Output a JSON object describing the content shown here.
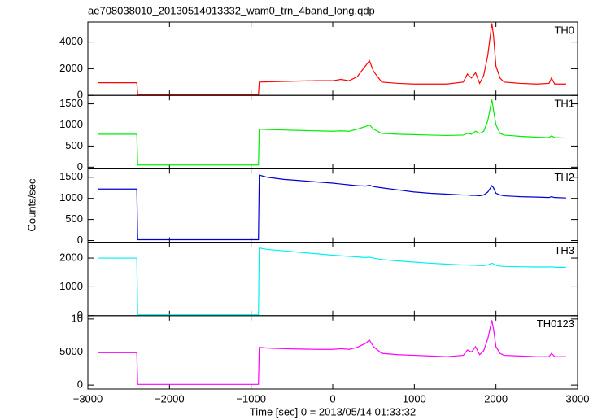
{
  "chart_data": {
    "type": "line",
    "title": "ae708038010_20130514013332_wam0_trn_4band_long.qdp",
    "xlabel": "Time [sec] 0 = 2013/05/14 01:33:32",
    "ylabel": "Counts/sec",
    "xlim": [
      -3000,
      3000
    ],
    "xticks": [
      {
        "value": -3000,
        "label": "−3000"
      },
      {
        "value": -2000,
        "label": "−2000"
      },
      {
        "value": -1000,
        "label": "−1000"
      },
      0,
      1000,
      2000,
      3000
    ],
    "x": [
      -2880,
      -2700,
      -2500,
      -2400,
      -2390,
      -2200,
      -2000,
      -1800,
      -1600,
      -1400,
      -1200,
      -1000,
      -910,
      -900,
      -800,
      -600,
      -400,
      -200,
      0,
      100,
      200,
      300,
      400,
      450,
      500,
      600,
      800,
      1000,
      1200,
      1400,
      1600,
      1650,
      1700,
      1750,
      1800,
      1850,
      1900,
      1950,
      1970,
      2000,
      2050,
      2100,
      2300,
      2500,
      2650,
      2680,
      2720,
      2860
    ],
    "series": [
      {
        "name": "TH0",
        "color": "#ff0000",
        "ylim": [
          0,
          5500
        ],
        "yticks": [
          0,
          2000,
          4000
        ],
        "values": [
          950,
          950,
          950,
          950,
          60,
          60,
          60,
          60,
          60,
          60,
          60,
          60,
          60,
          1000,
          1020,
          1050,
          1080,
          1100,
          1100,
          1200,
          1100,
          1400,
          2200,
          2600,
          1800,
          1000,
          900,
          850,
          850,
          850,
          1000,
          1600,
          1300,
          1700,
          900,
          1500,
          3000,
          5400,
          4500,
          2200,
          1300,
          1000,
          900,
          850,
          900,
          1300,
          850,
          850
        ]
      },
      {
        "name": "TH1",
        "color": "#00ee00",
        "ylim": [
          -40,
          1700
        ],
        "yticks": [
          0,
          500,
          1000,
          1500
        ],
        "values": [
          780,
          780,
          780,
          780,
          50,
          50,
          50,
          50,
          50,
          50,
          50,
          50,
          50,
          900,
          890,
          880,
          870,
          860,
          850,
          860,
          850,
          900,
          960,
          1000,
          900,
          800,
          780,
          770,
          760,
          750,
          760,
          800,
          780,
          850,
          800,
          850,
          1100,
          1600,
          1350,
          1000,
          800,
          760,
          730,
          710,
          700,
          740,
          700,
          690
        ]
      },
      {
        "name": "TH2",
        "color": "#0000d0",
        "ylim": [
          -40,
          1700
        ],
        "yticks": [
          0,
          500,
          1000,
          1500
        ],
        "values": [
          1220,
          1220,
          1220,
          1220,
          20,
          20,
          20,
          20,
          20,
          20,
          20,
          20,
          20,
          1550,
          1500,
          1450,
          1420,
          1390,
          1360,
          1340,
          1320,
          1300,
          1290,
          1310,
          1280,
          1250,
          1200,
          1150,
          1120,
          1100,
          1080,
          1080,
          1070,
          1070,
          1060,
          1080,
          1150,
          1300,
          1250,
          1120,
          1080,
          1060,
          1040,
          1030,
          1020,
          1040,
          1020,
          1010
        ]
      },
      {
        "name": "TH3",
        "color": "#00f0f0",
        "ylim": [
          0,
          2550
        ],
        "yticks": [
          0,
          1000,
          2000
        ],
        "values": [
          2000,
          2000,
          2000,
          2000,
          30,
          30,
          30,
          30,
          30,
          30,
          30,
          30,
          30,
          2350,
          2300,
          2250,
          2200,
          2150,
          2100,
          2080,
          2060,
          2040,
          2020,
          2030,
          2000,
          1950,
          1900,
          1860,
          1820,
          1790,
          1760,
          1760,
          1750,
          1750,
          1740,
          1740,
          1760,
          1820,
          1800,
          1750,
          1720,
          1710,
          1700,
          1690,
          1690,
          1700,
          1680,
          1680
        ]
      },
      {
        "name": "TH0123",
        "color": "#ff00ff",
        "ylim": [
          -600,
          10500
        ],
        "yticks": [
          0,
          5000,
          {
            "value": 10000,
            "label": "10"
          }
        ],
        "values": [
          4900,
          4900,
          4900,
          4900,
          100,
          100,
          100,
          100,
          100,
          100,
          100,
          100,
          100,
          5700,
          5600,
          5500,
          5450,
          5400,
          5400,
          5500,
          5400,
          5700,
          6300,
          6800,
          5800,
          4800,
          4600,
          4500,
          4400,
          4300,
          4500,
          5300,
          5000,
          5800,
          4600,
          5200,
          7000,
          9800,
          8500,
          5800,
          4800,
          4500,
          4400,
          4300,
          4300,
          4800,
          4300,
          4300
        ]
      }
    ]
  }
}
